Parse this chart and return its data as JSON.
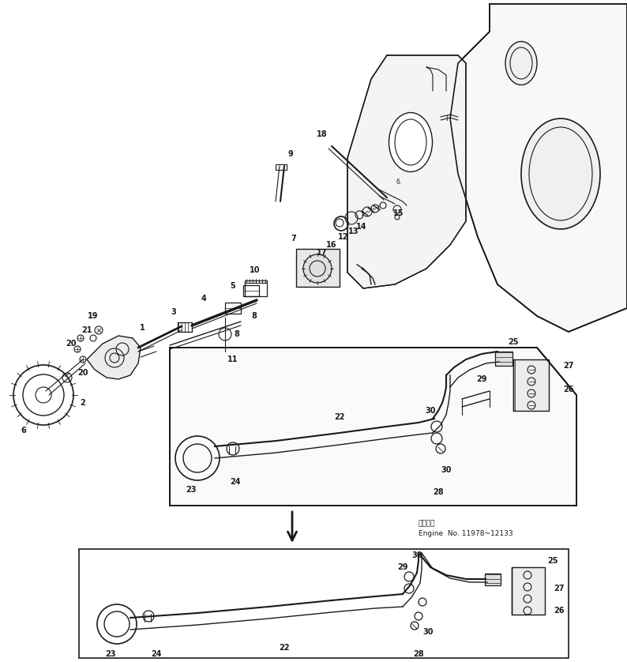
{
  "bg_color": "#ffffff",
  "line_color": "#1a1a1a",
  "fig_width": 7.94,
  "fig_height": 8.38,
  "engine_label1": "適用号簿",
  "engine_label2": "Engine  No. 11978~12133"
}
